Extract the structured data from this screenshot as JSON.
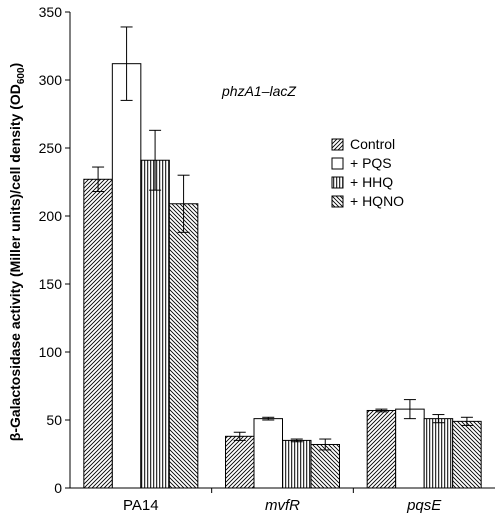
{
  "chart_data": {
    "type": "bar",
    "ylabel": "β-Galactosidase activity (Miller units)/cell density (OD",
    "ylabel_sub": "600",
    "ylabel_close": ")",
    "annotation": "phzA1–lacZ",
    "ylim": [
      0,
      350
    ],
    "yticks": [
      0,
      50,
      100,
      150,
      200,
      250,
      300,
      350
    ],
    "categories": [
      "PA14",
      "mvfR",
      "pqsE"
    ],
    "categories_italic": [
      false,
      true,
      true
    ],
    "legend_position": "right, inside plot",
    "series": [
      {
        "name": "Control",
        "pattern": "diagonal-right",
        "values": [
          227,
          38,
          57
        ],
        "errors": [
          9,
          3,
          1
        ]
      },
      {
        "name": "+ PQS",
        "pattern": "blank",
        "values": [
          312,
          51,
          58
        ],
        "errors": [
          27,
          1,
          7
        ]
      },
      {
        "name": "+ HHQ",
        "pattern": "vertical",
        "values": [
          241,
          35,
          51
        ],
        "errors": [
          22,
          1,
          3
        ]
      },
      {
        "name": "+ HQNO",
        "pattern": "diagonal-left",
        "values": [
          209,
          32,
          49
        ],
        "errors": [
          21,
          4,
          3
        ]
      }
    ],
    "grid": false
  }
}
